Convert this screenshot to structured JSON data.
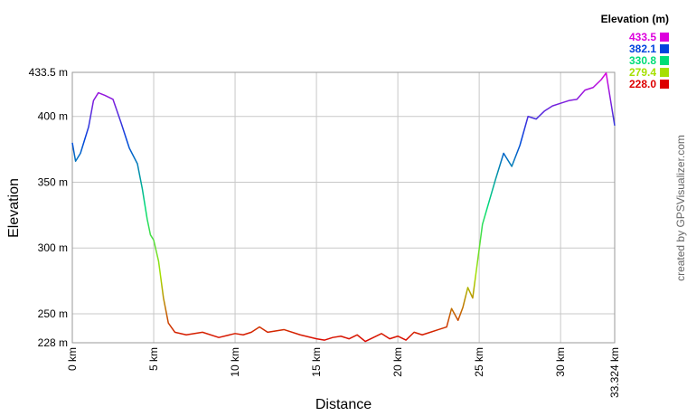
{
  "chart_data": {
    "type": "line",
    "x_label": "Distance",
    "y_label": "Elevation",
    "legend_title": "Elevation (m)",
    "color_stops": [
      {
        "value": 433.5,
        "color": "#dd00dd"
      },
      {
        "value": 382.1,
        "color": "#0044dd"
      },
      {
        "value": 330.8,
        "color": "#00dd77"
      },
      {
        "value": 279.4,
        "color": "#a6e000"
      },
      {
        "value": 228,
        "label": "228.0",
        "color": "#dd0000"
      }
    ],
    "credit": "created by GPSVisualizer.com",
    "grid": true,
    "xlim": [
      0,
      33.324
    ],
    "ylim": [
      228,
      433.5
    ],
    "xticks": [
      {
        "value": 0,
        "label": "0 km"
      },
      {
        "value": 5,
        "label": "5 km"
      },
      {
        "value": 10,
        "label": "10 km"
      },
      {
        "value": 15,
        "label": "15 km"
      },
      {
        "value": 20,
        "label": "20 km"
      },
      {
        "value": 25,
        "label": "25 km"
      },
      {
        "value": 30,
        "label": "30 km"
      },
      {
        "value": 33.324,
        "label": "33.324 km"
      }
    ],
    "yticks": [
      {
        "value": 228,
        "label": "228 m"
      },
      {
        "value": 250,
        "label": "250 m"
      },
      {
        "value": 300,
        "label": "300 m"
      },
      {
        "value": 350,
        "label": "350 m"
      },
      {
        "value": 400,
        "label": "400 m"
      },
      {
        "value": 433.5,
        "label": "433.5 m"
      }
    ],
    "x": [
      0,
      0.2,
      0.5,
      1,
      1.3,
      1.6,
      2,
      2.5,
      3,
      3.5,
      4,
      4.3,
      4.6,
      4.8,
      5,
      5.3,
      5.6,
      5.9,
      6.3,
      7,
      8,
      9,
      10,
      10.5,
      11,
      11.5,
      12,
      13,
      14,
      15,
      15.5,
      16,
      16.5,
      17,
      17.5,
      18,
      18.5,
      19,
      19.5,
      20,
      20.5,
      21,
      21.5,
      22,
      22.5,
      23,
      23.3,
      23.7,
      24,
      24.3,
      24.6,
      24.9,
      25.2,
      25.6,
      26,
      26.5,
      27,
      27.5,
      28,
      28.5,
      29,
      29.5,
      30,
      30.5,
      31,
      31.5,
      32,
      32.5,
      32.8,
      33.1,
      33.324
    ],
    "values": [
      380,
      366,
      372,
      392,
      412,
      418,
      416,
      413,
      395,
      376,
      364,
      345,
      322,
      310,
      306,
      290,
      262,
      243,
      236,
      234,
      236,
      232,
      235,
      234,
      236,
      240,
      236,
      238,
      234,
      231,
      230,
      232,
      233,
      231,
      234,
      229,
      232,
      235,
      231,
      233,
      230,
      236,
      234,
      236,
      238,
      240,
      254,
      245,
      255,
      270,
      262,
      290,
      318,
      335,
      352,
      372,
      362,
      378,
      400,
      398,
      404,
      408,
      410,
      412,
      413,
      420,
      422,
      428,
      433,
      410,
      393
    ]
  }
}
